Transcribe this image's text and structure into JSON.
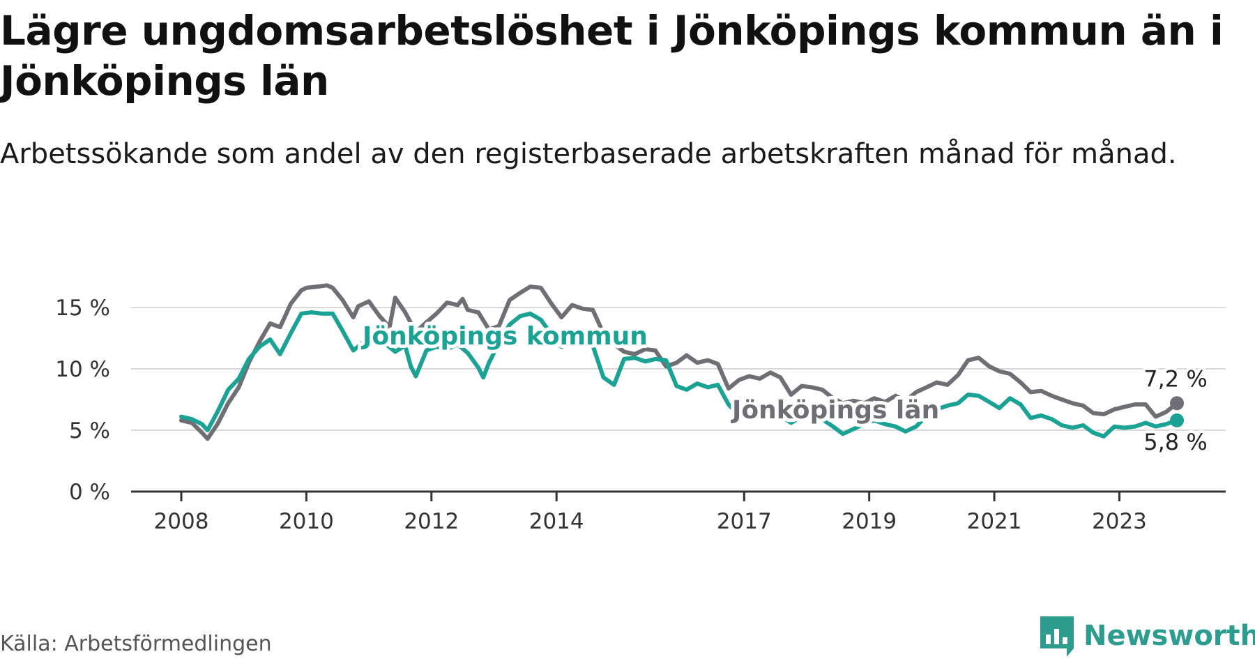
{
  "title": "Lägre ungdomsarbetslöshet i Jönköpings kommun än i Jönköpings län",
  "subtitle": "Arbetssökande som andel av den registerbaserade arbetskraften månad för månad.",
  "source": "Källa: Arbetsförmedlingen",
  "brand": "Newsworthy",
  "colors": {
    "kommun": "#1aa394",
    "lan": "#6e6e74",
    "grid": "#d9d9d9",
    "axis": "#333333",
    "brand": "#2b9c8d"
  },
  "chart_data": {
    "type": "line",
    "title": "Lägre ungdomsarbetslöshet i Jönköpings kommun än i Jönköpings län",
    "xlabel": "",
    "ylabel": "",
    "ylim": [
      0,
      17
    ],
    "xlim": [
      2007.4,
      2024.9
    ],
    "yticks": [
      0,
      5,
      10,
      15
    ],
    "ytick_labels": [
      "0 %",
      "5 %",
      "10 %",
      "15 %"
    ],
    "xticks": [
      2008,
      2010,
      2012,
      2014,
      2017,
      2019,
      2021,
      2023
    ],
    "xtick_labels": [
      "2008",
      "2010",
      "2012",
      "2014",
      "2017",
      "2019",
      "2021",
      "2023"
    ],
    "series": [
      {
        "name": "Jönköpings län",
        "label": "Jönköpings län",
        "end_label": "7,2 %",
        "end_value": 7.2,
        "points": [
          [
            2008.0,
            5.8
          ],
          [
            2008.17,
            5.6
          ],
          [
            2008.33,
            4.8
          ],
          [
            2008.42,
            4.3
          ],
          [
            2008.58,
            5.5
          ],
          [
            2008.75,
            7.2
          ],
          [
            2008.92,
            8.5
          ],
          [
            2009.08,
            10.5
          ],
          [
            2009.25,
            12.2
          ],
          [
            2009.42,
            13.7
          ],
          [
            2009.58,
            13.4
          ],
          [
            2009.75,
            15.3
          ],
          [
            2009.92,
            16.4
          ],
          [
            2010.0,
            16.6
          ],
          [
            2010.17,
            16.7
          ],
          [
            2010.33,
            16.8
          ],
          [
            2010.42,
            16.6
          ],
          [
            2010.58,
            15.6
          ],
          [
            2010.75,
            14.2
          ],
          [
            2010.83,
            15.1
          ],
          [
            2011.0,
            15.5
          ],
          [
            2011.17,
            14.3
          ],
          [
            2011.33,
            13.4
          ],
          [
            2011.42,
            15.8
          ],
          [
            2011.58,
            14.6
          ],
          [
            2011.75,
            13.0
          ],
          [
            2011.92,
            13.8
          ],
          [
            2012.08,
            14.5
          ],
          [
            2012.25,
            15.4
          ],
          [
            2012.42,
            15.2
          ],
          [
            2012.5,
            15.7
          ],
          [
            2012.58,
            14.8
          ],
          [
            2012.75,
            14.6
          ],
          [
            2012.92,
            13.2
          ],
          [
            2013.08,
            13.5
          ],
          [
            2013.25,
            15.6
          ],
          [
            2013.42,
            16.2
          ],
          [
            2013.58,
            16.7
          ],
          [
            2013.75,
            16.6
          ],
          [
            2013.92,
            15.3
          ],
          [
            2014.08,
            14.2
          ],
          [
            2014.25,
            15.2
          ],
          [
            2014.42,
            14.9
          ],
          [
            2014.58,
            14.8
          ],
          [
            2014.75,
            12.9
          ],
          [
            2014.92,
            12.0
          ],
          [
            2015.08,
            11.4
          ],
          [
            2015.25,
            11.2
          ],
          [
            2015.42,
            11.6
          ],
          [
            2015.58,
            11.5
          ],
          [
            2015.75,
            10.2
          ],
          [
            2015.92,
            10.5
          ],
          [
            2016.08,
            11.1
          ],
          [
            2016.25,
            10.5
          ],
          [
            2016.42,
            10.7
          ],
          [
            2016.58,
            10.4
          ],
          [
            2016.75,
            8.4
          ],
          [
            2016.92,
            9.1
          ],
          [
            2017.08,
            9.4
          ],
          [
            2017.25,
            9.2
          ],
          [
            2017.42,
            9.7
          ],
          [
            2017.58,
            9.3
          ],
          [
            2017.75,
            7.9
          ],
          [
            2017.92,
            8.6
          ],
          [
            2018.08,
            8.5
          ],
          [
            2018.25,
            8.3
          ],
          [
            2018.42,
            7.6
          ],
          [
            2018.58,
            7.2
          ],
          [
            2018.75,
            7.4
          ],
          [
            2018.92,
            7.2
          ],
          [
            2019.08,
            7.6
          ],
          [
            2019.25,
            7.3
          ],
          [
            2019.42,
            7.8
          ],
          [
            2019.58,
            7.4
          ],
          [
            2019.75,
            8.1
          ],
          [
            2019.92,
            8.5
          ],
          [
            2020.08,
            8.9
          ],
          [
            2020.25,
            8.7
          ],
          [
            2020.42,
            9.5
          ],
          [
            2020.58,
            10.7
          ],
          [
            2020.75,
            10.9
          ],
          [
            2020.92,
            10.2
          ],
          [
            2021.08,
            9.8
          ],
          [
            2021.25,
            9.6
          ],
          [
            2021.42,
            8.9
          ],
          [
            2021.58,
            8.1
          ],
          [
            2021.75,
            8.2
          ],
          [
            2021.92,
            7.8
          ],
          [
            2022.08,
            7.5
          ],
          [
            2022.25,
            7.2
          ],
          [
            2022.42,
            7.0
          ],
          [
            2022.58,
            6.4
          ],
          [
            2022.75,
            6.3
          ],
          [
            2022.92,
            6.7
          ],
          [
            2023.08,
            6.9
          ],
          [
            2023.25,
            7.1
          ],
          [
            2023.42,
            7.1
          ],
          [
            2023.58,
            6.1
          ],
          [
            2023.75,
            6.5
          ],
          [
            2023.92,
            7.2
          ]
        ]
      },
      {
        "name": "Jönköpings kommun",
        "label": "Jönköpings kommun",
        "end_label": "5,8 %",
        "end_value": 5.8,
        "points": [
          [
            2008.0,
            6.1
          ],
          [
            2008.17,
            5.9
          ],
          [
            2008.33,
            5.5
          ],
          [
            2008.42,
            5.0
          ],
          [
            2008.58,
            6.5
          ],
          [
            2008.75,
            8.3
          ],
          [
            2008.92,
            9.2
          ],
          [
            2009.08,
            10.8
          ],
          [
            2009.25,
            11.8
          ],
          [
            2009.42,
            12.4
          ],
          [
            2009.58,
            11.2
          ],
          [
            2009.75,
            12.9
          ],
          [
            2009.92,
            14.5
          ],
          [
            2010.08,
            14.6
          ],
          [
            2010.25,
            14.5
          ],
          [
            2010.42,
            14.5
          ],
          [
            2010.58,
            13.1
          ],
          [
            2010.75,
            11.5
          ],
          [
            2010.92,
            12.2
          ],
          [
            2011.08,
            12.8
          ],
          [
            2011.25,
            12.1
          ],
          [
            2011.42,
            11.4
          ],
          [
            2011.58,
            11.9
          ],
          [
            2011.67,
            10.2
          ],
          [
            2011.75,
            9.4
          ],
          [
            2011.92,
            11.5
          ],
          [
            2012.08,
            11.8
          ],
          [
            2012.25,
            11.6
          ],
          [
            2012.42,
            12.0
          ],
          [
            2012.58,
            11.3
          ],
          [
            2012.75,
            10.1
          ],
          [
            2012.83,
            9.3
          ],
          [
            2012.92,
            10.5
          ],
          [
            2013.08,
            12.1
          ],
          [
            2013.25,
            13.6
          ],
          [
            2013.42,
            14.3
          ],
          [
            2013.58,
            14.5
          ],
          [
            2013.75,
            14.0
          ],
          [
            2013.92,
            12.8
          ],
          [
            2014.08,
            11.8
          ],
          [
            2014.25,
            12.3
          ],
          [
            2014.42,
            12.3
          ],
          [
            2014.58,
            11.9
          ],
          [
            2014.75,
            9.3
          ],
          [
            2014.92,
            8.7
          ],
          [
            2015.08,
            10.8
          ],
          [
            2015.25,
            10.9
          ],
          [
            2015.42,
            10.6
          ],
          [
            2015.58,
            10.8
          ],
          [
            2015.75,
            10.7
          ],
          [
            2015.92,
            8.6
          ],
          [
            2016.08,
            8.3
          ],
          [
            2016.25,
            8.8
          ],
          [
            2016.42,
            8.5
          ],
          [
            2016.58,
            8.7
          ],
          [
            2016.75,
            7.1
          ],
          [
            2016.92,
            6.2
          ],
          [
            2017.08,
            6.8
          ],
          [
            2017.25,
            7.0
          ],
          [
            2017.42,
            6.5
          ],
          [
            2017.58,
            6.2
          ],
          [
            2017.75,
            5.6
          ],
          [
            2017.92,
            6.1
          ],
          [
            2018.08,
            6.2
          ],
          [
            2018.25,
            5.9
          ],
          [
            2018.42,
            5.3
          ],
          [
            2018.58,
            4.7
          ],
          [
            2018.75,
            5.1
          ],
          [
            2018.92,
            5.5
          ],
          [
            2019.08,
            5.8
          ],
          [
            2019.25,
            5.5
          ],
          [
            2019.42,
            5.3
          ],
          [
            2019.58,
            4.9
          ],
          [
            2019.75,
            5.3
          ],
          [
            2019.92,
            6.2
          ],
          [
            2020.08,
            6.7
          ],
          [
            2020.25,
            7.0
          ],
          [
            2020.42,
            7.2
          ],
          [
            2020.58,
            7.9
          ],
          [
            2020.75,
            7.8
          ],
          [
            2020.92,
            7.3
          ],
          [
            2021.08,
            6.8
          ],
          [
            2021.25,
            7.6
          ],
          [
            2021.42,
            7.1
          ],
          [
            2021.58,
            6.0
          ],
          [
            2021.75,
            6.2
          ],
          [
            2021.92,
            5.9
          ],
          [
            2022.08,
            5.4
          ],
          [
            2022.25,
            5.2
          ],
          [
            2022.42,
            5.4
          ],
          [
            2022.58,
            4.8
          ],
          [
            2022.75,
            4.5
          ],
          [
            2022.92,
            5.3
          ],
          [
            2023.08,
            5.2
          ],
          [
            2023.25,
            5.3
          ],
          [
            2023.42,
            5.6
          ],
          [
            2023.58,
            5.3
          ],
          [
            2023.75,
            5.5
          ],
          [
            2023.92,
            5.8
          ]
        ]
      }
    ]
  }
}
